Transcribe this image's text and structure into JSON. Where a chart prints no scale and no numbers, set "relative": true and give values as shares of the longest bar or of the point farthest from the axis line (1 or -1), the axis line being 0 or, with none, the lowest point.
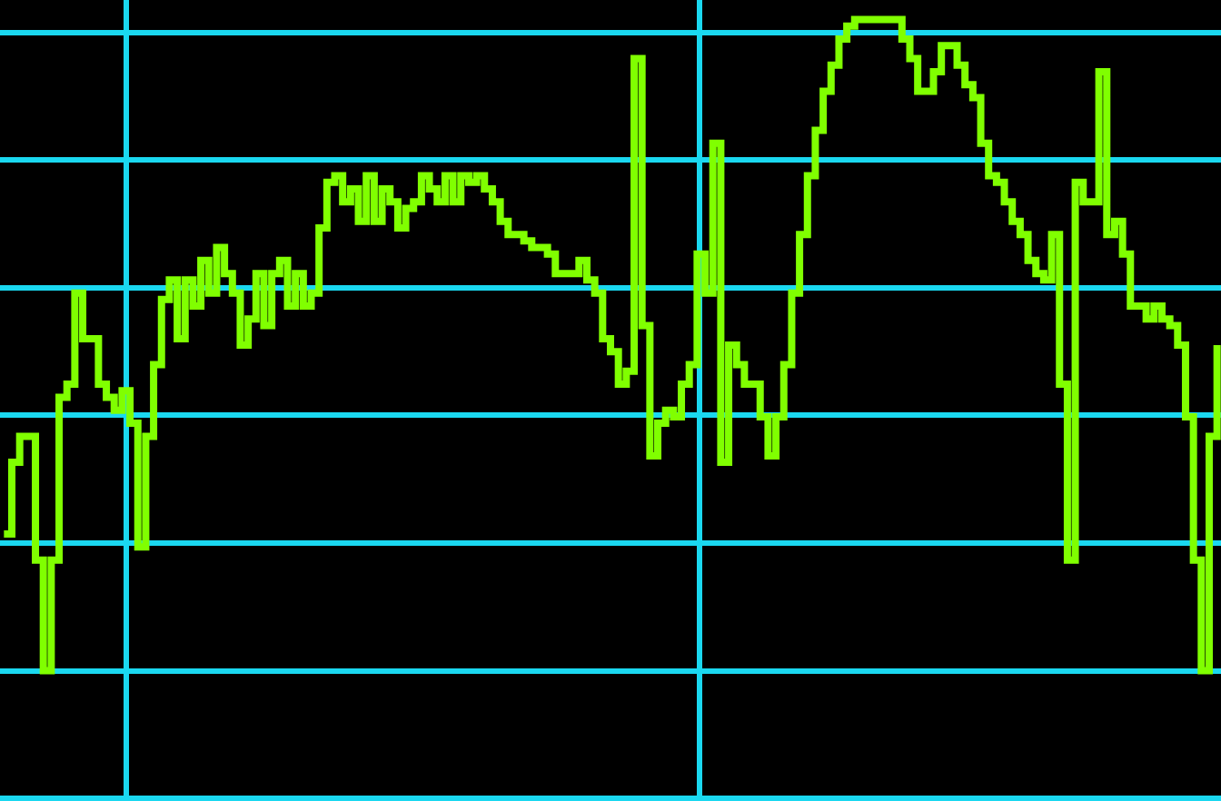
{
  "chart_data": {
    "type": "step",
    "relative": true,
    "grid": true,
    "marker": "none",
    "line_style": "solid",
    "categories": [
      null,
      null,
      null,
      null,
      null,
      null,
      null,
      null,
      null,
      null,
      null,
      null,
      null,
      null,
      null,
      null,
      null,
      null,
      null,
      null,
      null,
      null,
      null,
      null,
      null,
      null,
      null,
      null,
      null,
      null,
      null,
      null,
      null,
      null,
      null,
      null,
      null,
      null,
      null,
      null,
      null,
      null,
      null,
      null,
      null,
      null,
      null,
      null,
      null,
      null,
      null,
      null,
      null,
      null,
      null,
      null,
      null,
      null,
      null,
      null,
      null,
      null,
      null,
      null,
      null,
      null,
      null,
      null,
      null,
      null,
      null,
      null,
      null,
      null,
      null,
      null,
      null,
      null,
      null,
      null,
      null,
      null,
      null,
      null,
      null,
      null,
      null,
      null,
      null,
      null,
      null,
      null,
      null,
      null,
      null,
      null,
      null,
      null,
      null,
      null,
      null,
      null,
      null,
      null,
      null,
      null,
      null,
      null,
      null,
      null,
      null,
      null,
      null,
      null,
      null,
      null,
      null,
      null,
      null,
      null,
      null,
      null,
      null,
      null,
      null,
      null,
      null,
      null,
      null,
      null,
      null,
      null,
      null,
      null,
      null,
      null,
      null,
      null,
      null,
      null,
      null,
      null,
      null,
      null,
      null,
      null,
      null,
      null,
      null,
      null,
      null,
      null,
      null,
      null,
      null
    ],
    "series": [
      {
        "color": "#80ff00",
        "values": [
          0.21,
          0.32,
          0.36,
          0.36,
          0.17,
          0,
          0.17,
          0.42,
          0.44,
          0.58,
          0.51,
          0.51,
          0.44,
          0.42,
          0.4,
          0.43,
          0.38,
          0.19,
          0.36,
          0.47,
          0.57,
          0.6,
          0.51,
          0.6,
          0.56,
          0.63,
          0.58,
          0.65,
          0.61,
          0.58,
          0.5,
          0.54,
          0.61,
          0.53,
          0.61,
          0.63,
          0.56,
          0.61,
          0.56,
          0.58,
          0.68,
          0.75,
          0.76,
          0.72,
          0.74,
          0.69,
          0.76,
          0.69,
          0.74,
          0.72,
          0.68,
          0.71,
          0.72,
          0.76,
          0.74,
          0.72,
          0.76,
          0.72,
          0.76,
          0.75,
          0.76,
          0.74,
          0.72,
          0.69,
          0.67,
          0.67,
          0.66,
          0.65,
          0.65,
          0.64,
          0.61,
          0.61,
          0.61,
          0.63,
          0.6,
          0.58,
          0.51,
          0.49,
          0.44,
          0.46,
          0.94,
          0.53,
          0.33,
          0.38,
          0.4,
          0.39,
          0.44,
          0.47,
          0.64,
          0.58,
          0.81,
          0.32,
          0.5,
          0.47,
          0.44,
          0.44,
          0.39,
          0.33,
          0.39,
          0.47,
          0.58,
          0.67,
          0.76,
          0.83,
          0.89,
          0.93,
          0.97,
          0.99,
          1,
          1,
          1,
          1,
          1,
          1,
          0.97,
          0.94,
          0.89,
          0.89,
          0.92,
          0.96,
          0.96,
          0.93,
          0.9,
          0.88,
          0.81,
          0.76,
          0.75,
          0.72,
          0.69,
          0.67,
          0.63,
          0.61,
          0.6,
          0.67,
          0.44,
          0.17,
          0.75,
          0.72,
          0.72,
          0.92,
          0.67,
          0.69,
          0.64,
          0.56,
          0.56,
          0.54,
          0.56,
          0.54,
          0.53,
          0.5,
          0.39,
          0.17,
          0,
          0.36,
          0.5
        ]
      }
    ]
  }
}
